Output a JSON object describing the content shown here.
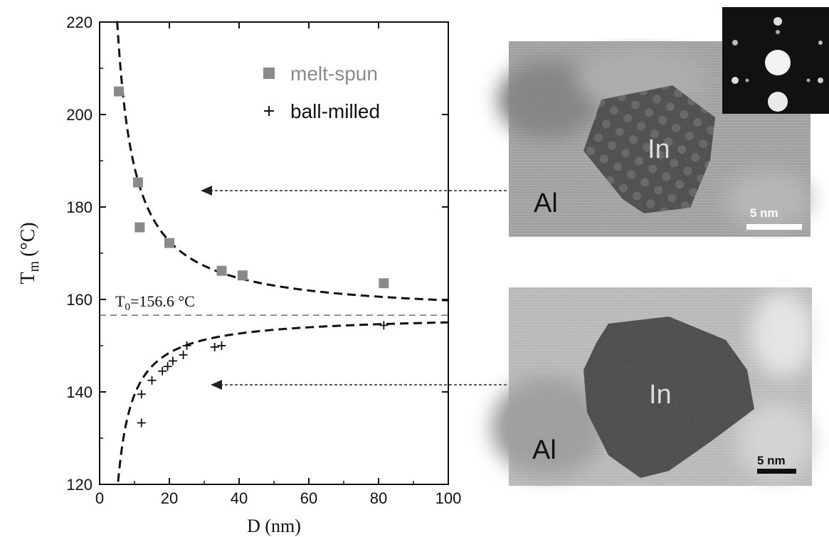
{
  "chart_data": {
    "type": "scatter",
    "xlabel": "D (nm)",
    "ylabel_main": "T",
    "ylabel_sub": "m",
    "ylabel_unit": "(°C)",
    "xlim": [
      0,
      100
    ],
    "ylim": [
      120,
      220
    ],
    "xticks": [
      0,
      20,
      40,
      60,
      80,
      100
    ],
    "yticks": [
      120,
      140,
      160,
      180,
      200,
      220
    ],
    "reference_line": {
      "value": 156.6,
      "label_main": "T",
      "label_sub": "0",
      "label_rest": "=156.6 °C"
    },
    "legend_position": "top-right",
    "series": [
      {
        "name": "melt-spun",
        "marker": "square",
        "color": "#8a8a8a",
        "points": [
          [
            5.5,
            205
          ],
          [
            11,
            185.3
          ],
          [
            11.5,
            175.6
          ],
          [
            20,
            172.2
          ],
          [
            35,
            166.2
          ],
          [
            41,
            165.2
          ],
          [
            81.5,
            163.5
          ]
        ]
      },
      {
        "name": "ball-milled",
        "marker": "plus",
        "color": "#111111",
        "points": [
          [
            12,
            133.3
          ],
          [
            12,
            139.5
          ],
          [
            15,
            142.5
          ],
          [
            18,
            144.5
          ],
          [
            19.5,
            145.5
          ],
          [
            21,
            146.7
          ],
          [
            24,
            148
          ],
          [
            25,
            150
          ],
          [
            33,
            149.7
          ],
          [
            35,
            150
          ],
          [
            81.5,
            154.4
          ]
        ]
      }
    ],
    "fits": [
      {
        "for": "melt-spun",
        "style": "dashed",
        "model": "T0 + A/D",
        "T0": 156.6,
        "A": 320,
        "x_range": [
          4.9,
          100
        ]
      },
      {
        "for": "ball-milled",
        "style": "dashed",
        "model": "T0 - B/(D-c)",
        "T0": 156.6,
        "B": 155,
        "c": 1.0,
        "x_range": [
          5.3,
          100
        ]
      }
    ]
  },
  "images": [
    {
      "region": "In",
      "matrix": "Al",
      "scale_bar": "5 nm",
      "points_to_y": 184
    },
    {
      "region": "In",
      "matrix": "Al",
      "scale_bar": "5 nm",
      "points_to_y": 141
    }
  ]
}
